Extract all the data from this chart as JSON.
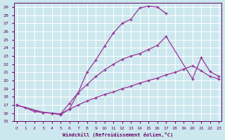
{
  "background_color": "#cce8ee",
  "grid_color": "#b8d8e0",
  "line_color": "#993399",
  "xlim_min": -0.3,
  "xlim_max": 23.3,
  "ylim_min": 15,
  "ylim_max": 29.5,
  "xticks": [
    0,
    1,
    2,
    3,
    4,
    5,
    6,
    7,
    8,
    9,
    10,
    11,
    12,
    13,
    14,
    15,
    16,
    17,
    18,
    19,
    20,
    21,
    22,
    23
  ],
  "yticks": [
    15,
    16,
    17,
    18,
    19,
    20,
    21,
    22,
    23,
    24,
    25,
    26,
    27,
    28,
    29
  ],
  "xlabel": "Windchill (Refroidissement éolien,°C)",
  "font_color": "#660066",
  "curve1_x": [
    0,
    1,
    2,
    3,
    4,
    5,
    6,
    7,
    8,
    9,
    10,
    11,
    12,
    13,
    14,
    15,
    16,
    17
  ],
  "curve1_y": [
    17.0,
    16.7,
    16.2,
    16.1,
    16.0,
    15.8,
    16.5,
    18.5,
    21.0,
    22.5,
    24.2,
    25.8,
    27.0,
    27.5,
    28.9,
    29.1,
    29.0,
    28.2
  ],
  "curve2_x": [
    0,
    3,
    4,
    5,
    6,
    7,
    8,
    9,
    10,
    11,
    12,
    13,
    14,
    15,
    16,
    17,
    20,
    21,
    22,
    23
  ],
  "curve2_y": [
    17.0,
    16.1,
    16.0,
    15.9,
    17.2,
    18.5,
    19.5,
    20.5,
    21.3,
    22.0,
    22.6,
    23.0,
    23.3,
    23.8,
    24.3,
    25.4,
    20.2,
    22.8,
    21.1,
    20.5
  ],
  "curve3_x": [
    0,
    3,
    4,
    5,
    6,
    7,
    8,
    9,
    10,
    11,
    12,
    13,
    14,
    15,
    16,
    17,
    18,
    19,
    20,
    21,
    22,
    23
  ],
  "curve3_y": [
    17.0,
    16.1,
    16.0,
    15.9,
    16.5,
    17.0,
    17.5,
    17.9,
    18.3,
    18.6,
    19.0,
    19.3,
    19.7,
    20.0,
    20.3,
    20.7,
    21.0,
    21.4,
    21.8,
    21.2,
    20.5,
    20.2
  ]
}
